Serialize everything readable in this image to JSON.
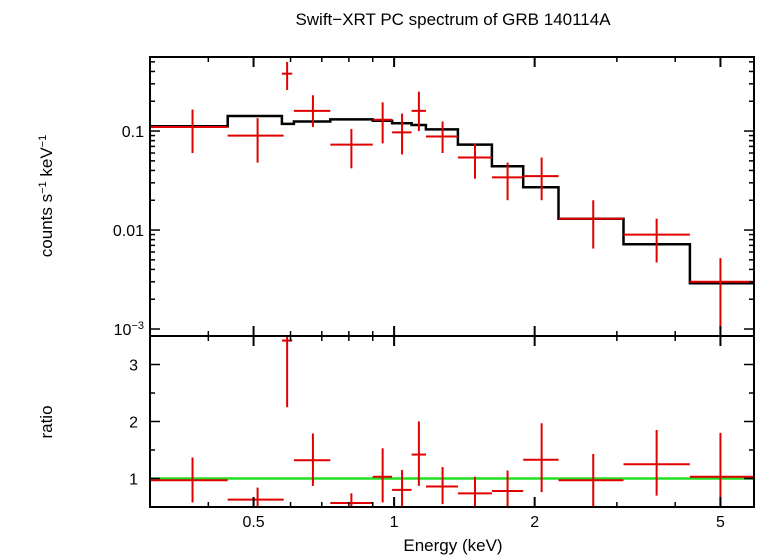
{
  "chart_data": [
    {
      "type": "scatter",
      "panel": "spectrum",
      "title": "Swift−XRT PC spectrum of GRB 140114A",
      "ylabel_text": "counts s",
      "ylabel_exp1": "−1",
      "ylabel_mid": " keV",
      "ylabel_exp2": "−1",
      "xlabel": "",
      "xscale": "log",
      "yscale": "log",
      "xlim": [
        0.3,
        5.9
      ],
      "ylim": [
        0.00085,
        0.56
      ],
      "yticks": [
        {
          "value": 0.1,
          "label": "0.1"
        },
        {
          "value": 0.01,
          "label": "0.01"
        },
        {
          "value": 0.001,
          "label_base": "10",
          "label_exp": "−3"
        }
      ],
      "series": [
        {
          "color": "#e00000",
          "points": [
            {
              "x": 0.37,
              "xlo": 0.3,
              "xhi": 0.44,
              "y": 0.11,
              "ylo": 0.06,
              "yhi": 0.165
            },
            {
              "x": 0.51,
              "xlo": 0.44,
              "xhi": 0.58,
              "y": 0.09,
              "ylo": 0.048,
              "yhi": 0.135
            },
            {
              "x": 0.59,
              "xlo": 0.575,
              "xhi": 0.605,
              "y": 0.38,
              "ylo": 0.26,
              "yhi": 0.5
            },
            {
              "x": 0.67,
              "xlo": 0.61,
              "xhi": 0.73,
              "y": 0.16,
              "ylo": 0.11,
              "yhi": 0.23
            },
            {
              "x": 0.81,
              "xlo": 0.73,
              "xhi": 0.9,
              "y": 0.073,
              "ylo": 0.042,
              "yhi": 0.105
            },
            {
              "x": 0.945,
              "xlo": 0.9,
              "xhi": 0.99,
              "y": 0.13,
              "ylo": 0.075,
              "yhi": 0.195
            },
            {
              "x": 1.04,
              "xlo": 0.99,
              "xhi": 1.09,
              "y": 0.097,
              "ylo": 0.058,
              "yhi": 0.15
            },
            {
              "x": 1.13,
              "xlo": 1.09,
              "xhi": 1.17,
              "y": 0.16,
              "ylo": 0.1,
              "yhi": 0.25
            },
            {
              "x": 1.27,
              "xlo": 1.17,
              "xhi": 1.37,
              "y": 0.088,
              "ylo": 0.06,
              "yhi": 0.125
            },
            {
              "x": 1.49,
              "xlo": 1.37,
              "xhi": 1.62,
              "y": 0.054,
              "ylo": 0.033,
              "yhi": 0.075
            },
            {
              "x": 1.75,
              "xlo": 1.62,
              "xhi": 1.89,
              "y": 0.034,
              "ylo": 0.02,
              "yhi": 0.048
            },
            {
              "x": 2.07,
              "xlo": 1.89,
              "xhi": 2.25,
              "y": 0.035,
              "ylo": 0.02,
              "yhi": 0.054
            },
            {
              "x": 2.67,
              "xlo": 2.25,
              "xhi": 3.1,
              "y": 0.013,
              "ylo": 0.0065,
              "yhi": 0.02
            },
            {
              "x": 3.65,
              "xlo": 3.1,
              "xhi": 4.3,
              "y": 0.009,
              "ylo": 0.0047,
              "yhi": 0.013
            },
            {
              "x": 5.0,
              "xlo": 4.3,
              "xhi": 5.9,
              "y": 0.003,
              "ylo": 0.00085,
              "yhi": 0.0052
            }
          ]
        },
        {
          "color": "#000000",
          "step": [
            {
              "xlo": 0.3,
              "xhi": 0.44,
              "y": 0.112
            },
            {
              "xlo": 0.44,
              "xhi": 0.575,
              "y": 0.142
            },
            {
              "xlo": 0.575,
              "xhi": 0.61,
              "y": 0.118
            },
            {
              "xlo": 0.61,
              "xhi": 0.73,
              "y": 0.125
            },
            {
              "xlo": 0.73,
              "xhi": 0.9,
              "y": 0.131
            },
            {
              "xlo": 0.9,
              "xhi": 0.99,
              "y": 0.127
            },
            {
              "xlo": 0.99,
              "xhi": 1.09,
              "y": 0.12
            },
            {
              "xlo": 1.09,
              "xhi": 1.17,
              "y": 0.115
            },
            {
              "xlo": 1.17,
              "xhi": 1.37,
              "y": 0.104
            },
            {
              "xlo": 1.37,
              "xhi": 1.62,
              "y": 0.073
            },
            {
              "xlo": 1.62,
              "xhi": 1.89,
              "y": 0.044
            },
            {
              "xlo": 1.89,
              "xhi": 2.25,
              "y": 0.027
            },
            {
              "xlo": 2.25,
              "xhi": 3.1,
              "y": 0.013
            },
            {
              "xlo": 3.1,
              "xhi": 4.3,
              "y": 0.0072
            },
            {
              "xlo": 4.3,
              "xhi": 5.9,
              "y": 0.0029
            }
          ]
        }
      ]
    },
    {
      "type": "scatter",
      "panel": "ratio",
      "ylabel": "ratio",
      "xlabel": "Energy (keV)",
      "xscale": "log",
      "yscale": "linear",
      "xlim": [
        0.3,
        5.9
      ],
      "ylim": [
        0.5,
        3.5
      ],
      "xticks": [
        {
          "value": 0.5,
          "label": "0.5"
        },
        {
          "value": 1,
          "label": "1"
        },
        {
          "value": 2,
          "label": "2"
        },
        {
          "value": 5,
          "label": "5"
        }
      ],
      "yticks": [
        {
          "value": 1,
          "label": "1"
        },
        {
          "value": 2,
          "label": "2"
        },
        {
          "value": 3,
          "label": "3"
        }
      ],
      "reference_line": {
        "y": 1,
        "color": "#22dd22"
      },
      "series": [
        {
          "color": "#e00000",
          "points": [
            {
              "x": 0.37,
              "xlo": 0.3,
              "xhi": 0.44,
              "y": 0.97,
              "ylo": 0.58,
              "yhi": 1.37
            },
            {
              "x": 0.51,
              "xlo": 0.44,
              "xhi": 0.58,
              "y": 0.63,
              "ylo": 0.42,
              "yhi": 0.84
            },
            {
              "x": 0.59,
              "xlo": 0.575,
              "xhi": 0.605,
              "y": 3.42,
              "ylo": 2.25,
              "yhi": 3.55
            },
            {
              "x": 0.67,
              "xlo": 0.61,
              "xhi": 0.73,
              "y": 1.32,
              "ylo": 0.87,
              "yhi": 1.79
            },
            {
              "x": 0.81,
              "xlo": 0.73,
              "xhi": 0.9,
              "y": 0.57,
              "ylo": 0.38,
              "yhi": 0.74
            },
            {
              "x": 0.945,
              "xlo": 0.9,
              "xhi": 0.99,
              "y": 1.03,
              "ylo": 0.58,
              "yhi": 1.53
            },
            {
              "x": 1.04,
              "xlo": 0.99,
              "xhi": 1.09,
              "y": 0.8,
              "ylo": 0.45,
              "yhi": 1.15
            },
            {
              "x": 1.13,
              "xlo": 1.09,
              "xhi": 1.17,
              "y": 1.42,
              "ylo": 0.87,
              "yhi": 2.0
            },
            {
              "x": 1.27,
              "xlo": 1.17,
              "xhi": 1.37,
              "y": 0.86,
              "ylo": 0.55,
              "yhi": 1.2
            },
            {
              "x": 1.49,
              "xlo": 1.37,
              "xhi": 1.62,
              "y": 0.74,
              "ylo": 0.45,
              "yhi": 1.03
            },
            {
              "x": 1.75,
              "xlo": 1.62,
              "xhi": 1.89,
              "y": 0.78,
              "ylo": 0.45,
              "yhi": 1.14
            },
            {
              "x": 2.07,
              "xlo": 1.89,
              "xhi": 2.25,
              "y": 1.33,
              "ylo": 0.76,
              "yhi": 1.97
            },
            {
              "x": 2.67,
              "xlo": 2.25,
              "xhi": 3.1,
              "y": 0.97,
              "ylo": 0.49,
              "yhi": 1.43
            },
            {
              "x": 3.65,
              "xlo": 3.1,
              "xhi": 4.3,
              "y": 1.25,
              "ylo": 0.7,
              "yhi": 1.85
            },
            {
              "x": 5.0,
              "xlo": 4.3,
              "xhi": 5.9,
              "y": 1.03,
              "ylo": 0.48,
              "yhi": 1.8
            }
          ]
        }
      ]
    }
  ]
}
